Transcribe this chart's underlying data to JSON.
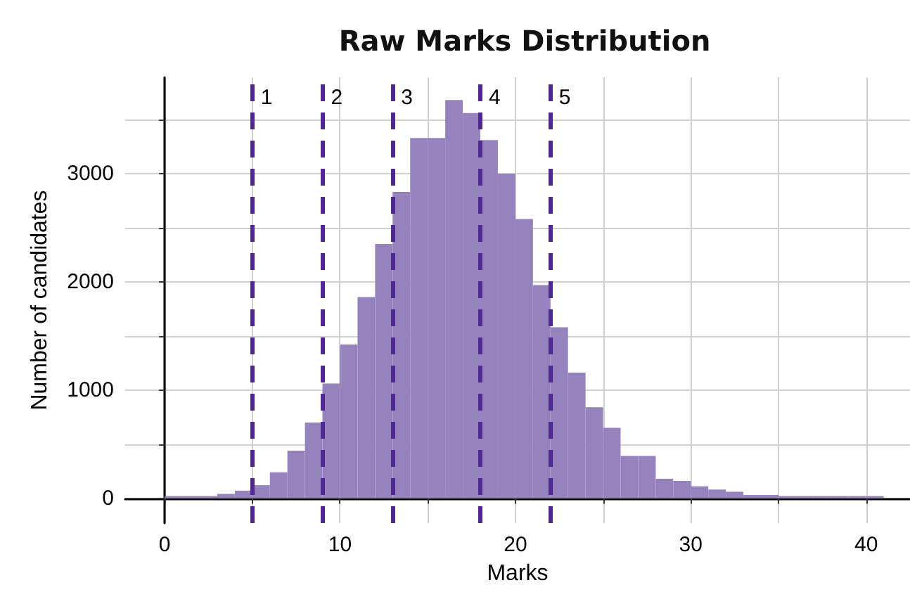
{
  "chart_data": {
    "type": "histogram",
    "title": "Raw Marks Distribution",
    "xlabel": "Marks",
    "ylabel": "Number of candidates",
    "bins": [
      0,
      1,
      2,
      3,
      4,
      5,
      6,
      7,
      8,
      9,
      10,
      11,
      12,
      13,
      14,
      15,
      16,
      17,
      18,
      19,
      20,
      21,
      22,
      23,
      24,
      25,
      26,
      27,
      28,
      29,
      30,
      31,
      32,
      33,
      34,
      35,
      36,
      37,
      38,
      39,
      40,
      41
    ],
    "values": [
      20,
      20,
      20,
      40,
      70,
      120,
      240,
      440,
      700,
      1060,
      1420,
      1860,
      2350,
      2830,
      3330,
      3330,
      3680,
      3560,
      3310,
      3000,
      2580,
      1970,
      1580,
      1160,
      840,
      650,
      390,
      390,
      180,
      160,
      110,
      80,
      60,
      30,
      30,
      20,
      20,
      20,
      20,
      20,
      20
    ],
    "color": "#9683be",
    "xlim": [
      -2.25,
      42.5
    ],
    "ylim": [
      -230,
      3890
    ],
    "xticks": [
      0,
      {
        "value": 5,
        "label": null
      },
      10,
      {
        "value": 15,
        "label": null
      },
      20,
      {
        "value": 25,
        "label": null
      },
      30,
      {
        "value": 35,
        "label": null
      },
      40
    ],
    "yticks": [
      0,
      {
        "value": 500,
        "label": null
      },
      1000,
      {
        "value": 1500,
        "label": null
      },
      2000,
      {
        "value": 2500,
        "label": null
      },
      3000,
      {
        "value": 3500,
        "label": null
      }
    ],
    "ref_lines": [
      {
        "axis": "x",
        "value": 5,
        "color": "#51288f",
        "line_style": "dashed"
      },
      {
        "axis": "x",
        "value": 9,
        "color": "#51288f",
        "line_style": "dashed"
      },
      {
        "axis": "x",
        "value": 13,
        "color": "#51288f",
        "line_style": "dashed"
      },
      {
        "axis": "x",
        "value": 18,
        "color": "#51288f",
        "line_style": "dashed"
      },
      {
        "axis": "x",
        "value": 22,
        "color": "#51288f",
        "line_style": "dashed"
      }
    ],
    "annotations": [
      {
        "text": "1",
        "x": 5,
        "y": 3700
      },
      {
        "text": "2",
        "x": 9,
        "y": 3700
      },
      {
        "text": "3",
        "x": 13,
        "y": 3700
      },
      {
        "text": "4",
        "x": 18,
        "y": 3700
      },
      {
        "text": "5",
        "x": 22,
        "y": 3700
      }
    ],
    "grid": true
  }
}
